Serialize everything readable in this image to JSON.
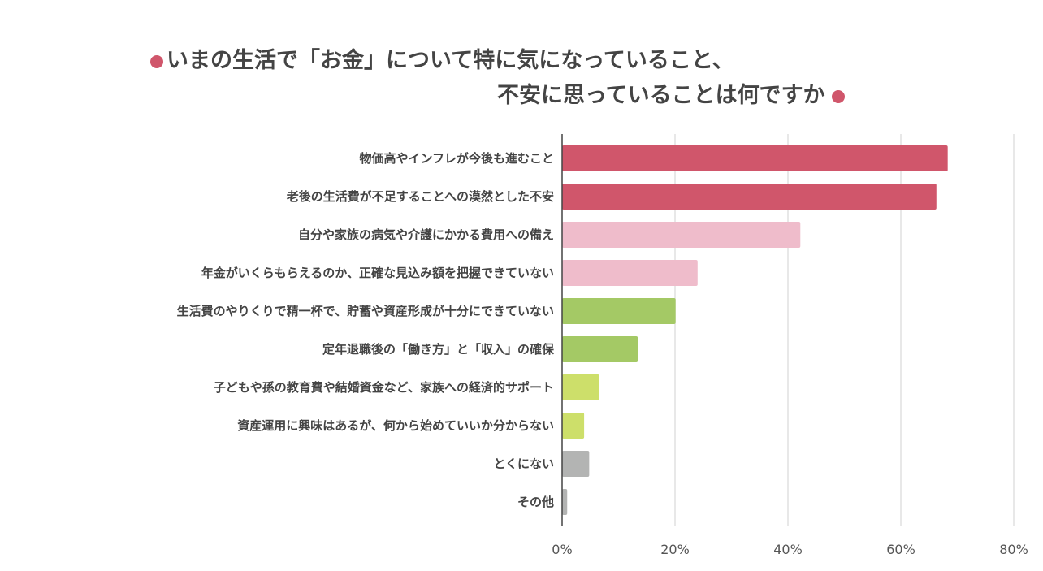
{
  "chart_data": {
    "type": "bar",
    "orientation": "horizontal",
    "title_line1": "いまの生活で「お金」について特に気になっていること、",
    "title_line2": "不安に思っていることは何ですか",
    "categories": [
      "物価高やインフレが今後も進むこと",
      "老後の生活費が不足することへの漠然とした不安",
      "自分や家族の病気や介護にかかる費用への備え",
      "年金がいくらもらえるのか、正確な見込み額を把握できていない",
      "生活費のやりくりで精一杯で、貯蓄や資産形成が十分にできていない",
      "定年退職後の「働き方」と「収入」の確保",
      "子どもや孫の教育費や結婚資金など、家族への経済的サポート",
      "資産運用に興味はあるが、何から始めていいか分からない",
      "とくにない",
      "その他"
    ],
    "values": [
      68.3,
      66.3,
      42.2,
      24.0,
      20.1,
      13.4,
      6.6,
      3.9,
      4.8,
      0.9
    ],
    "colors": [
      "#d0566b",
      "#d0566b",
      "#efbccb",
      "#efbccb",
      "#a4c965",
      "#a4c965",
      "#cddf6a",
      "#cddf6a",
      "#b3b4b3",
      "#b3b4b3"
    ],
    "xlim": [
      0,
      80
    ],
    "xticks": [
      "0%",
      "20%",
      "40%",
      "60%",
      "80%"
    ],
    "xtick_values": [
      0,
      20,
      40,
      60,
      80
    ],
    "grid": true,
    "accent_color": "#d0566b"
  }
}
